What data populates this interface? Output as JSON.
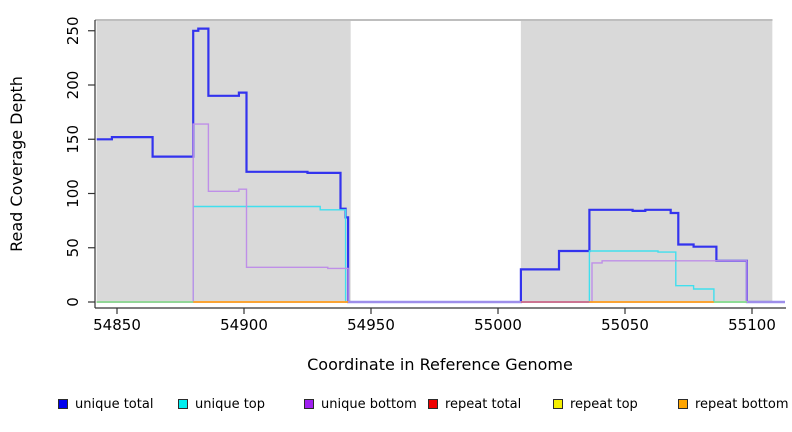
{
  "chart_data": {
    "type": "line",
    "step": true,
    "title": "",
    "xlabel": "Coordinate in Reference Genome",
    "ylabel": "Read Coverage Depth",
    "xlim": [
      54839,
      55113
    ],
    "ylim": [
      0,
      255
    ],
    "x_ticks": [
      54850,
      54900,
      54950,
      55000,
      55050,
      55100
    ],
    "y_ticks": [
      0,
      50,
      100,
      150,
      200,
      250
    ],
    "grid": false,
    "legend_position": "bottom",
    "plot_background": "#ffffff",
    "band_color": "#d9d9d9",
    "band_top_line_color": "#a8a8a8",
    "background_bands": [
      {
        "from": 54842,
        "to": 54942
      },
      {
        "from": 55009,
        "to": 55108
      }
    ],
    "series": [
      {
        "name": "unique total",
        "color": "#3333ee",
        "width": 2.2,
        "points": [
          [
            54842,
            150
          ],
          [
            54848,
            152
          ],
          [
            54864,
            134
          ],
          [
            54880,
            250
          ],
          [
            54882,
            252
          ],
          [
            54886,
            190
          ],
          [
            54898,
            193
          ],
          [
            54901,
            120
          ],
          [
            54925,
            119
          ],
          [
            54938,
            86
          ],
          [
            54940,
            78
          ],
          [
            54941,
            0
          ],
          [
            55009,
            30
          ],
          [
            55024,
            47
          ],
          [
            55036,
            85
          ],
          [
            55053,
            84
          ],
          [
            55058,
            85
          ],
          [
            55068,
            82
          ],
          [
            55071,
            53
          ],
          [
            55077,
            51
          ],
          [
            55086,
            38
          ],
          [
            55098,
            0
          ],
          [
            55113,
            0
          ]
        ]
      },
      {
        "name": "unique top",
        "color": "#40dfee",
        "width": 1.4,
        "points": [
          [
            54842,
            0
          ],
          [
            54880,
            88
          ],
          [
            54930,
            85
          ],
          [
            54940,
            0
          ],
          [
            55036,
            47
          ],
          [
            55063,
            46
          ],
          [
            55070,
            15
          ],
          [
            55077,
            12
          ],
          [
            55085,
            0
          ],
          [
            55113,
            0
          ]
        ]
      },
      {
        "name": "unique bottom",
        "color": "#bf8fe8",
        "width": 1.4,
        "points": [
          [
            54842,
            0
          ],
          [
            54880,
            164
          ],
          [
            54886,
            102
          ],
          [
            54898,
            104
          ],
          [
            54901,
            32
          ],
          [
            54933,
            31
          ],
          [
            54941,
            0
          ],
          [
            55037,
            36
          ],
          [
            55041,
            38
          ],
          [
            55098,
            0
          ],
          [
            55113,
            0
          ]
        ]
      },
      {
        "name": "repeat total",
        "color": "#d95f76",
        "width": 1.4,
        "points": [
          [
            55009,
            0
          ],
          [
            55036,
            0
          ]
        ]
      },
      {
        "name": "repeat top",
        "color": "#f2e50c",
        "width": 1.2,
        "points": [
          [
            54842,
            0
          ],
          [
            54880,
            0
          ],
          null,
          [
            55085,
            0
          ],
          [
            55098,
            0
          ]
        ]
      },
      {
        "name": "repeat bottom",
        "color": "#ff9d1e",
        "width": 1.8,
        "points": [
          [
            54880,
            0
          ],
          [
            54941,
            0
          ],
          null,
          [
            55036,
            0
          ],
          [
            55085,
            0
          ]
        ]
      }
    ],
    "baseline_overlaps": [
      {
        "from": 54842,
        "to": 54880,
        "color": "#85dc8f"
      },
      {
        "from": 55085,
        "to": 55098,
        "color": "#85dc8f"
      }
    ]
  },
  "legend": {
    "items": [
      {
        "label": "unique total",
        "swatch_color": "#0000ee"
      },
      {
        "label": "unique top",
        "swatch_color": "#00eeee"
      },
      {
        "label": "unique bottom",
        "swatch_color": "#a020f0"
      },
      {
        "label": "repeat total",
        "swatch_color": "#ee0000"
      },
      {
        "label": "repeat top",
        "swatch_color": "#f5ef00"
      },
      {
        "label": "repeat bottom",
        "swatch_color": "#ffa500"
      }
    ]
  }
}
